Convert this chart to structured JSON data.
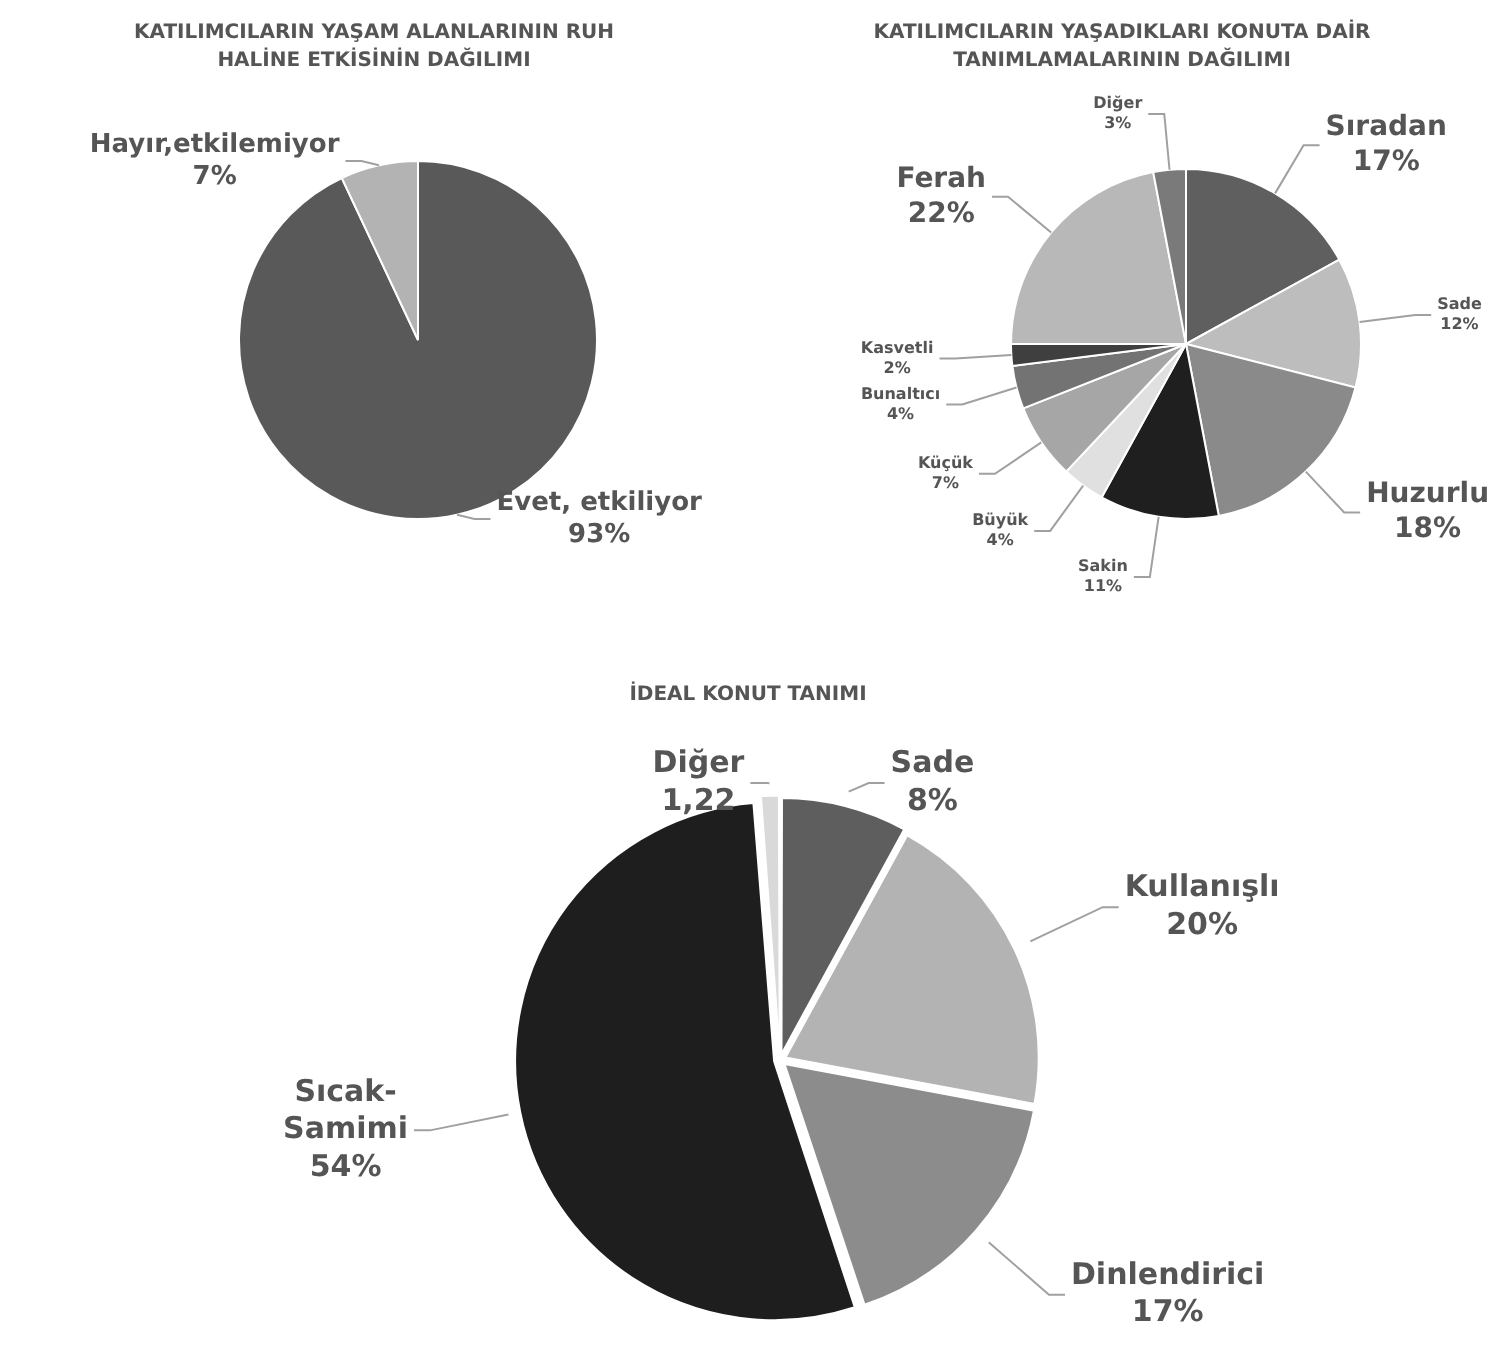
{
  "chart_data": [
    {
      "type": "pie",
      "title": "KATILIMCILARIN YAŞAM ALANLARININ RUH HALİNE ETKİSİNİN DAĞILIMI",
      "categories": [
        "Evet, etkiliyor",
        "Hayır,etkilemiyor"
      ],
      "values": [
        93,
        7
      ],
      "colors": [
        "#595959",
        "#b3b3b3"
      ],
      "value_labels": [
        "93%",
        "7%"
      ]
    },
    {
      "type": "pie",
      "title": "KATILIMCILARIN YAŞADIKLARI KONUTA DAİR TANIMLAMALARININ DAĞILIMI",
      "categories": [
        "Sıradan",
        "Sade",
        "Huzurlu",
        "Sakin",
        "Büyük",
        "Küçük",
        "Bunaltıcı",
        "Kasvetli",
        "Ferah",
        "Diğer"
      ],
      "values": [
        17,
        12,
        18,
        11,
        4,
        7,
        4,
        2,
        22,
        3
      ],
      "colors": [
        "#5f5f5f",
        "#bdbdbd",
        "#8a8a8a",
        "#1f1f1f",
        "#e0e0e0",
        "#a6a6a6",
        "#737373",
        "#3f3f3f",
        "#b8b8b8",
        "#7a7a7a"
      ],
      "value_labels": [
        "17%",
        "12%",
        "18%",
        "11%",
        "4%",
        "7%",
        "4%",
        "2%",
        "22%",
        "3%"
      ]
    },
    {
      "type": "pie",
      "title": "İDEAL KONUT TANIMI",
      "categories": [
        "Sade",
        "Kullanışlı",
        "Dinlendirici",
        "Sıcak-Samimi",
        "Diğer"
      ],
      "values": [
        8,
        20,
        17,
        54,
        1.22
      ],
      "colors": [
        "#5e5e5e",
        "#b3b3b3",
        "#8c8c8c",
        "#1e1e1e",
        "#d9d9d9"
      ],
      "value_labels": [
        "8%",
        "20%",
        "17%",
        "54%",
        "1,22"
      ]
    }
  ]
}
